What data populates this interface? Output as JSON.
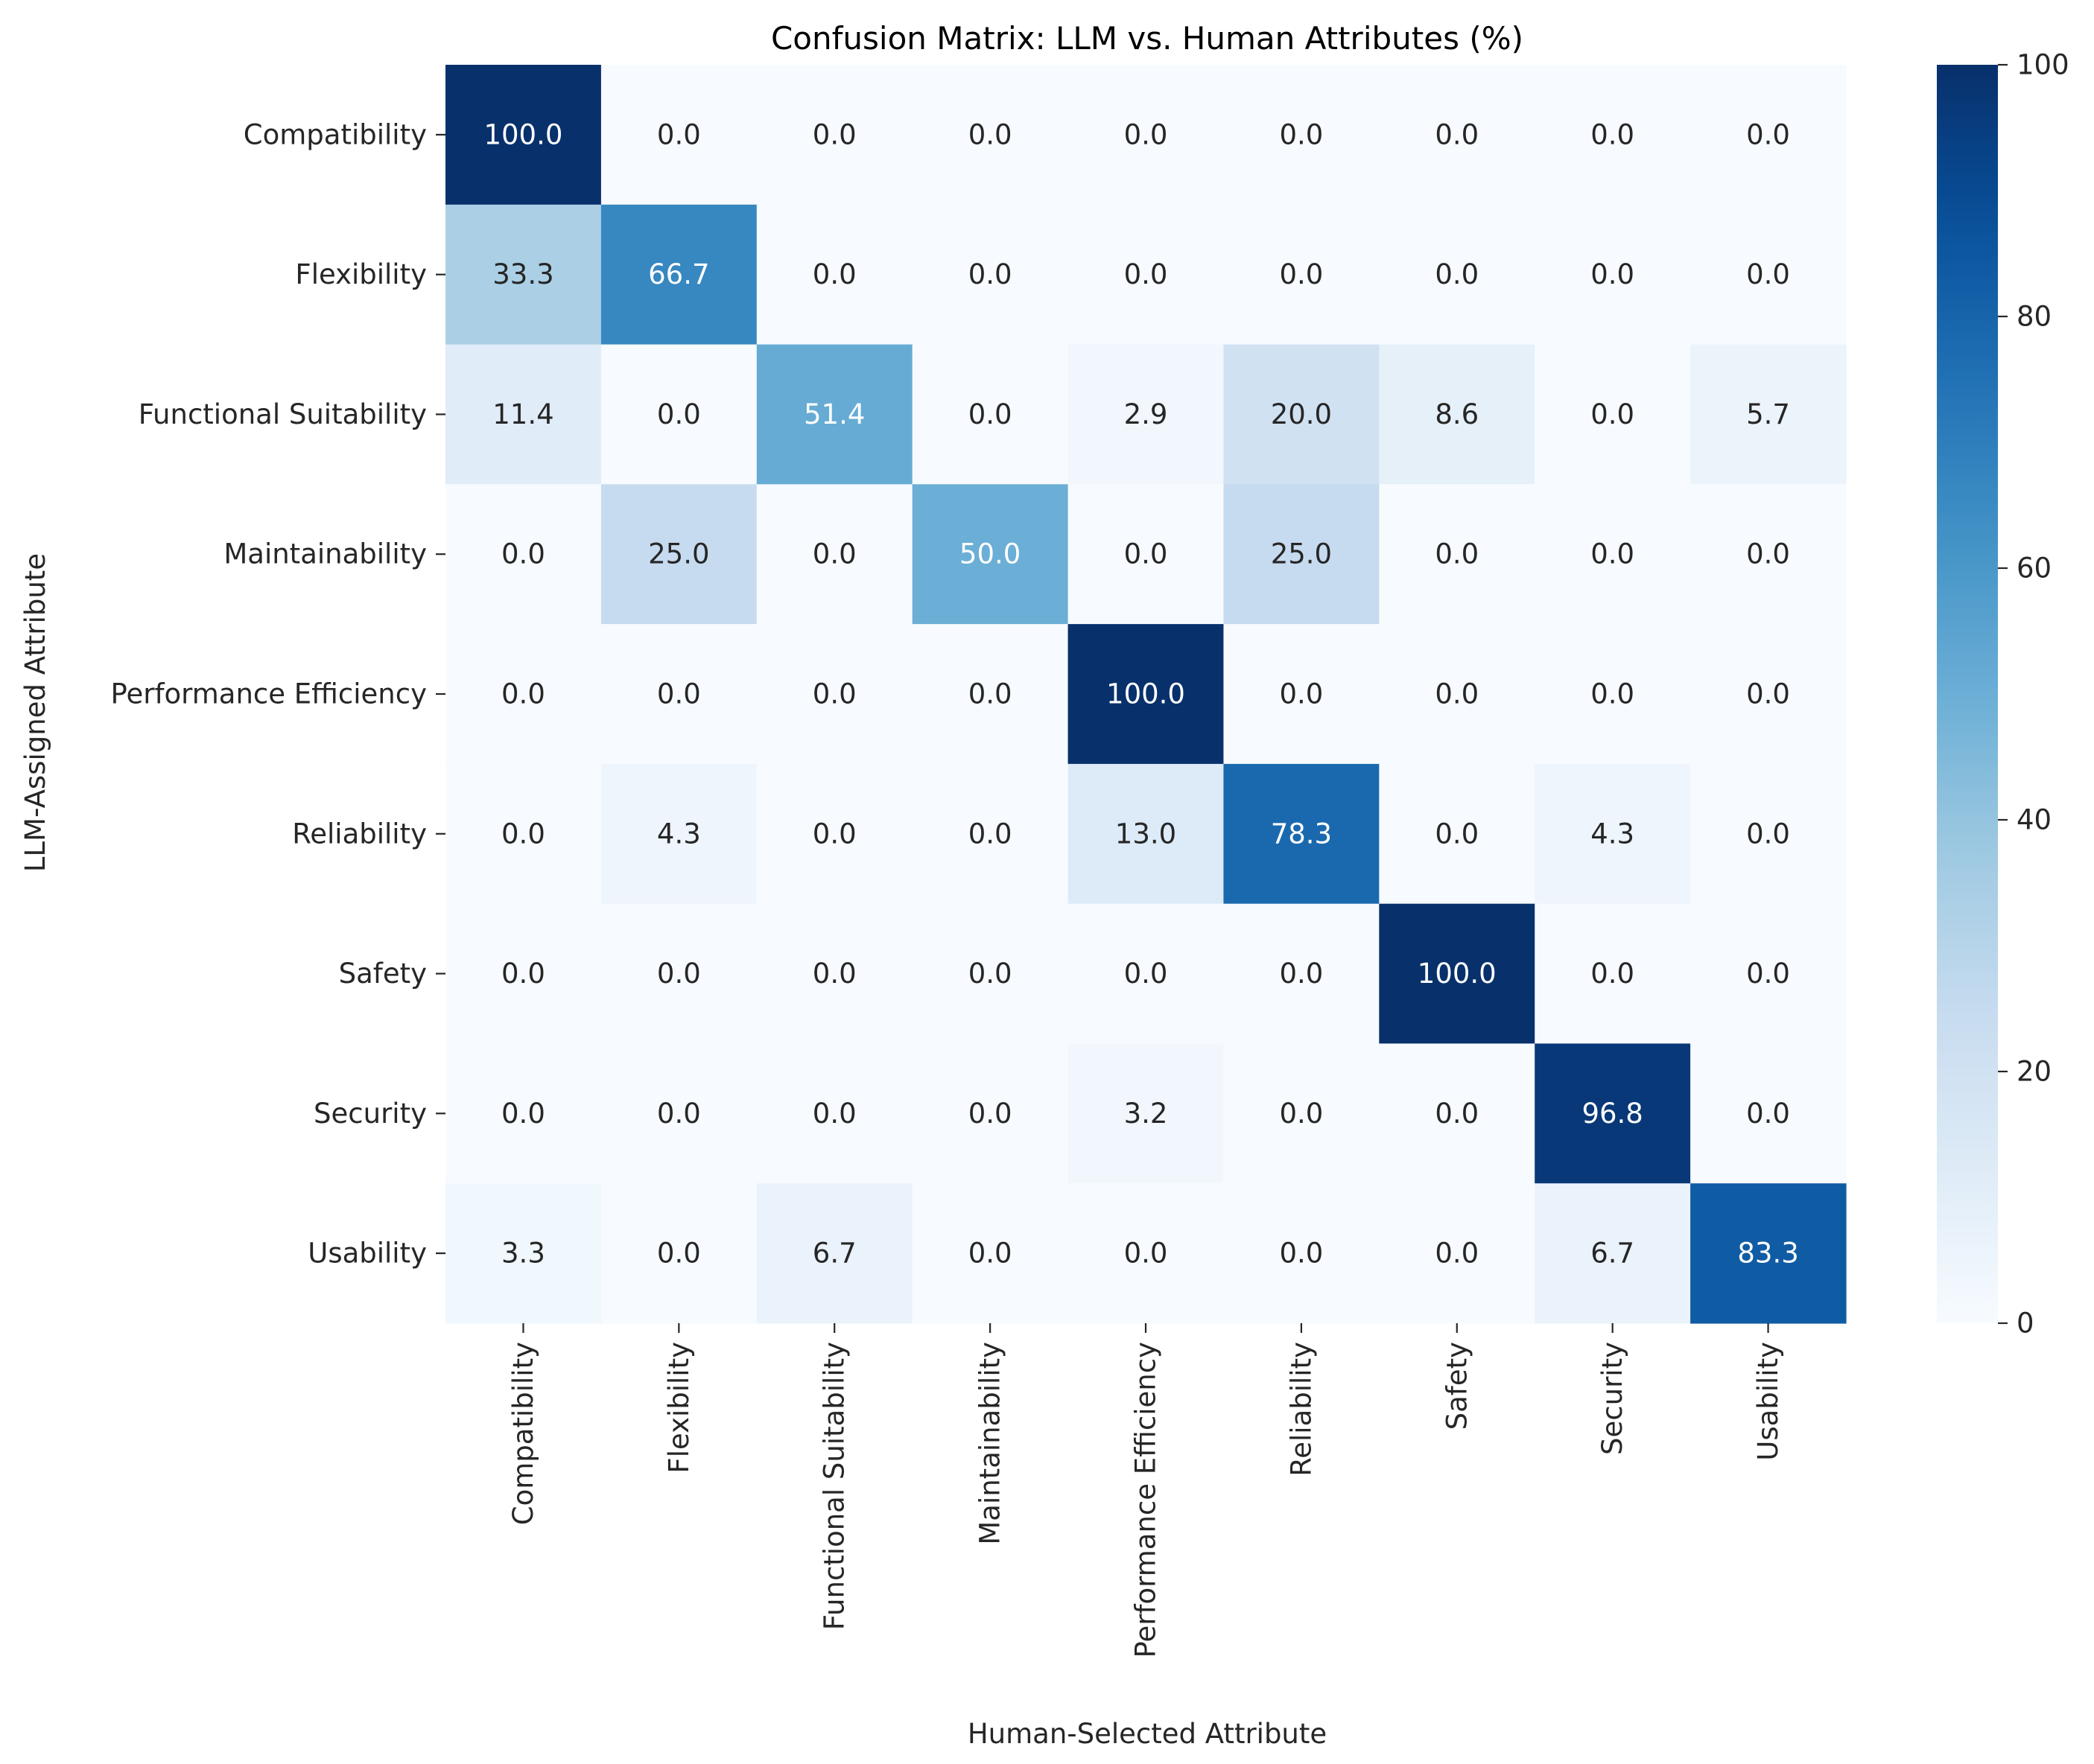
{
  "chart_data": {
    "type": "heatmap",
    "title": "Confusion Matrix: LLM vs. Human Attributes (%)",
    "xlabel": "Human-Selected Attribute",
    "ylabel": "LLM-Assigned Attribute",
    "x_categories": [
      "Compatibility",
      "Flexibility",
      "Functional Suitability",
      "Maintainability",
      "Performance Efficiency",
      "Reliability",
      "Safety",
      "Security",
      "Usability"
    ],
    "y_categories": [
      "Compatibility",
      "Flexibility",
      "Functional Suitability",
      "Maintainability",
      "Performance Efficiency",
      "Reliability",
      "Safety",
      "Security",
      "Usability"
    ],
    "values": [
      [
        100.0,
        0.0,
        0.0,
        0.0,
        0.0,
        0.0,
        0.0,
        0.0,
        0.0
      ],
      [
        33.3,
        66.7,
        0.0,
        0.0,
        0.0,
        0.0,
        0.0,
        0.0,
        0.0
      ],
      [
        11.4,
        0.0,
        51.4,
        0.0,
        2.9,
        20.0,
        8.6,
        0.0,
        5.7
      ],
      [
        0.0,
        25.0,
        0.0,
        50.0,
        0.0,
        25.0,
        0.0,
        0.0,
        0.0
      ],
      [
        0.0,
        0.0,
        0.0,
        0.0,
        100.0,
        0.0,
        0.0,
        0.0,
        0.0
      ],
      [
        0.0,
        4.3,
        0.0,
        0.0,
        13.0,
        78.3,
        0.0,
        4.3,
        0.0
      ],
      [
        0.0,
        0.0,
        0.0,
        0.0,
        0.0,
        0.0,
        100.0,
        0.0,
        0.0
      ],
      [
        0.0,
        0.0,
        0.0,
        0.0,
        3.2,
        0.0,
        0.0,
        96.8,
        0.0
      ],
      [
        3.3,
        0.0,
        6.7,
        0.0,
        0.0,
        0.0,
        0.0,
        6.7,
        83.3
      ]
    ],
    "value_format": "0.0",
    "colormap": "Blues",
    "colorbar": {
      "min": 0,
      "max": 100,
      "ticks": [
        0,
        20,
        40,
        60,
        80,
        100
      ]
    },
    "colors": {
      "low": "#f7fbff",
      "high": "#08306b",
      "text_dark": "#262626",
      "text_light": "#ffffff",
      "axis": "#262626"
    }
  }
}
